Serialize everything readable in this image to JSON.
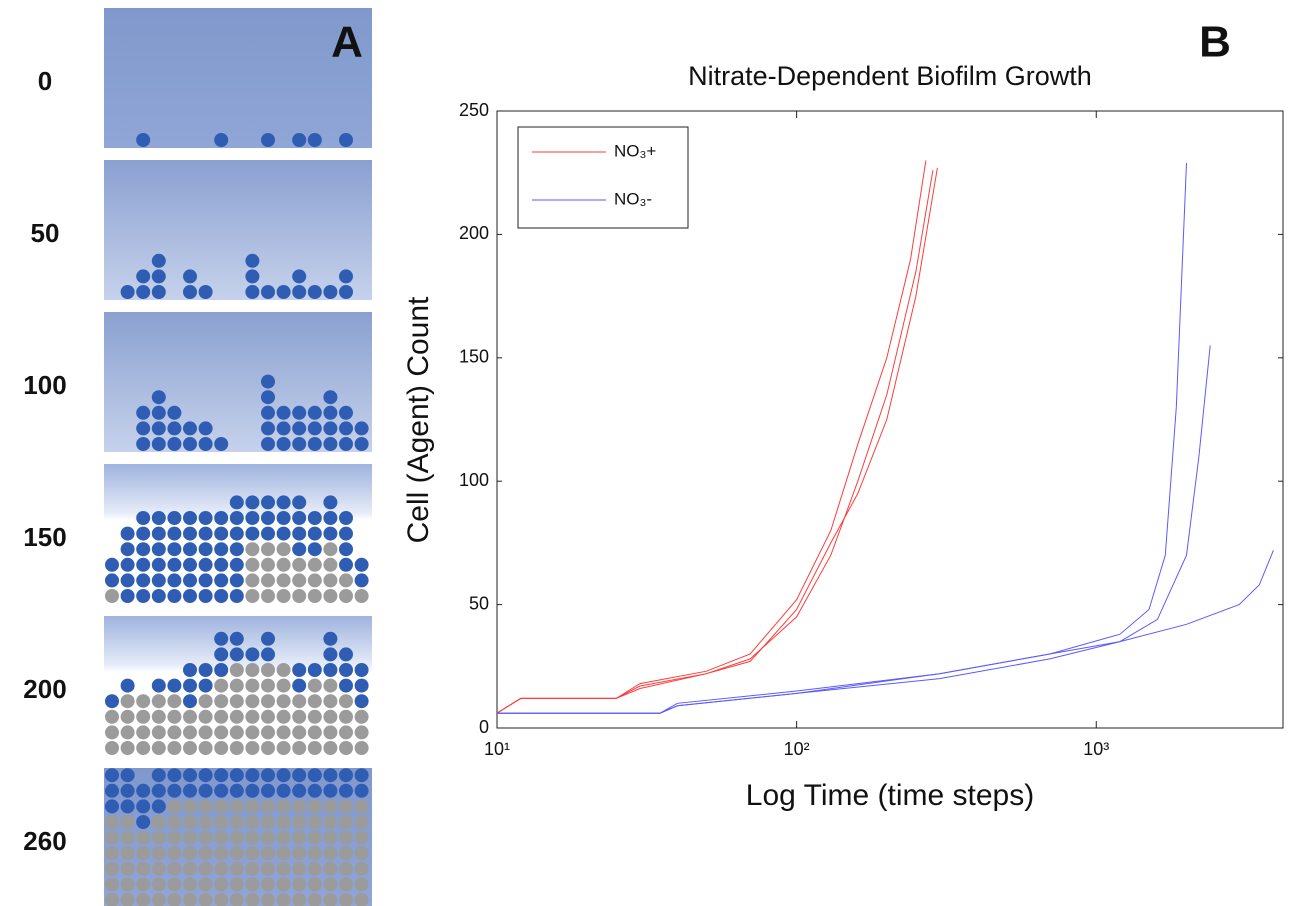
{
  "panel_a": {
    "label": "A",
    "frames": [
      0,
      50,
      100,
      150,
      200,
      260
    ]
  },
  "panel_b_label": "B",
  "chart_data": {
    "type": "line",
    "title": "Nitrate-Dependent Biofilm Growth",
    "x_label": "Log Time (time steps)",
    "y_label": "Cell (Agent) Count",
    "log_x": true,
    "grid": false,
    "legend": "upper left",
    "xlim": [
      10,
      4200
    ],
    "xticks": [
      {
        "value": 10,
        "label": "10¹"
      },
      {
        "value": 100,
        "label": "10²"
      },
      {
        "value": 1000,
        "label": "10³"
      }
    ],
    "ylim": [
      0,
      250
    ],
    "yticks": [
      0,
      50,
      100,
      150,
      200,
      250
    ],
    "series": [
      {
        "name": "NO₃+",
        "color": "#ff3b3b",
        "runs": [
          {
            "x": [
              10,
              12,
              25,
              30,
              50,
              70,
              100,
              130,
              160,
              200,
              240,
              270
            ],
            "values": [
              6,
              12,
              12,
              18,
              23,
              30,
              52,
              80,
              115,
              150,
              190,
              230
            ]
          },
          {
            "x": [
              10,
              12,
              25,
              30,
              50,
              70,
              100,
              130,
              160,
              200,
              250,
              285
            ],
            "values": [
              6,
              12,
              12,
              17,
              22,
              28,
              45,
              70,
              100,
              135,
              185,
              226
            ]
          },
          {
            "x": [
              10,
              12,
              25,
              30,
              50,
              70,
              100,
              130,
              160,
              200,
              250,
              295
            ],
            "values": [
              6,
              12,
              12,
              16,
              22,
              27,
              48,
              75,
              95,
              125,
              175,
              227
            ]
          }
        ]
      },
      {
        "name": "NO₃-",
        "color": "#5a5aff",
        "runs": [
          {
            "x": [
              10,
              35,
              40,
              100,
              300,
              700,
              1200,
              1500,
              1700,
              1850,
              2000
            ],
            "values": [
              6,
              6,
              10,
              15,
              22,
              30,
              38,
              48,
              70,
              130,
              229
            ]
          },
          {
            "x": [
              10,
              35,
              40,
              100,
              300,
              700,
              1200,
              1600,
              2000,
              2200,
              2400
            ],
            "values": [
              6,
              6,
              9,
              14,
              20,
              28,
              35,
              44,
              70,
              110,
              155
            ]
          },
          {
            "x": [
              10,
              35,
              40,
              100,
              300,
              700,
              1200,
              2000,
              3000,
              3500,
              3900
            ],
            "values": [
              6,
              6,
              9,
              14,
              22,
              30,
              35,
              42,
              50,
              58,
              72
            ]
          }
        ]
      }
    ]
  }
}
